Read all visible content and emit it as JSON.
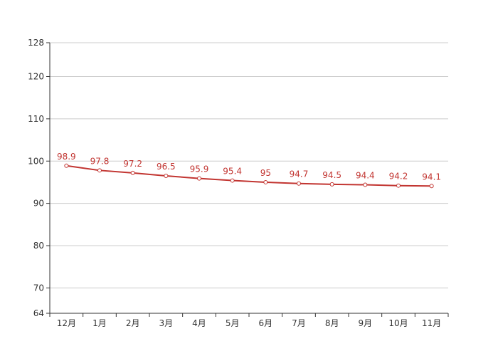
{
  "chart_data": {
    "type": "line",
    "categories": [
      "12月",
      "1月",
      "2月",
      "3月",
      "4月",
      "5月",
      "6月",
      "7月",
      "8月",
      "9月",
      "10月",
      "11月"
    ],
    "series": [
      {
        "values": [
          98.9,
          97.8,
          97.2,
          96.5,
          95.9,
          95.4,
          95,
          94.7,
          94.5,
          94.4,
          94.2,
          94.1
        ],
        "data_labels": [
          "98.9",
          "97.8",
          "97.2",
          "96.5",
          "95.9",
          "95.4",
          "95",
          "94.7",
          "94.5",
          "94.4",
          "94.2",
          "94.1"
        ]
      }
    ],
    "yticks": [
      64,
      70,
      80,
      90,
      100,
      110,
      120,
      128
    ],
    "ytick_labels": [
      "64",
      "70",
      "80",
      "90",
      "100",
      "110",
      "120",
      "128"
    ],
    "ylim": [
      64,
      128
    ],
    "grid": true,
    "legend": "none",
    "colors": {
      "line": "#c23531",
      "marker_fill": "#ffffff",
      "grid": "#cccccc",
      "axis": "#333333"
    }
  }
}
